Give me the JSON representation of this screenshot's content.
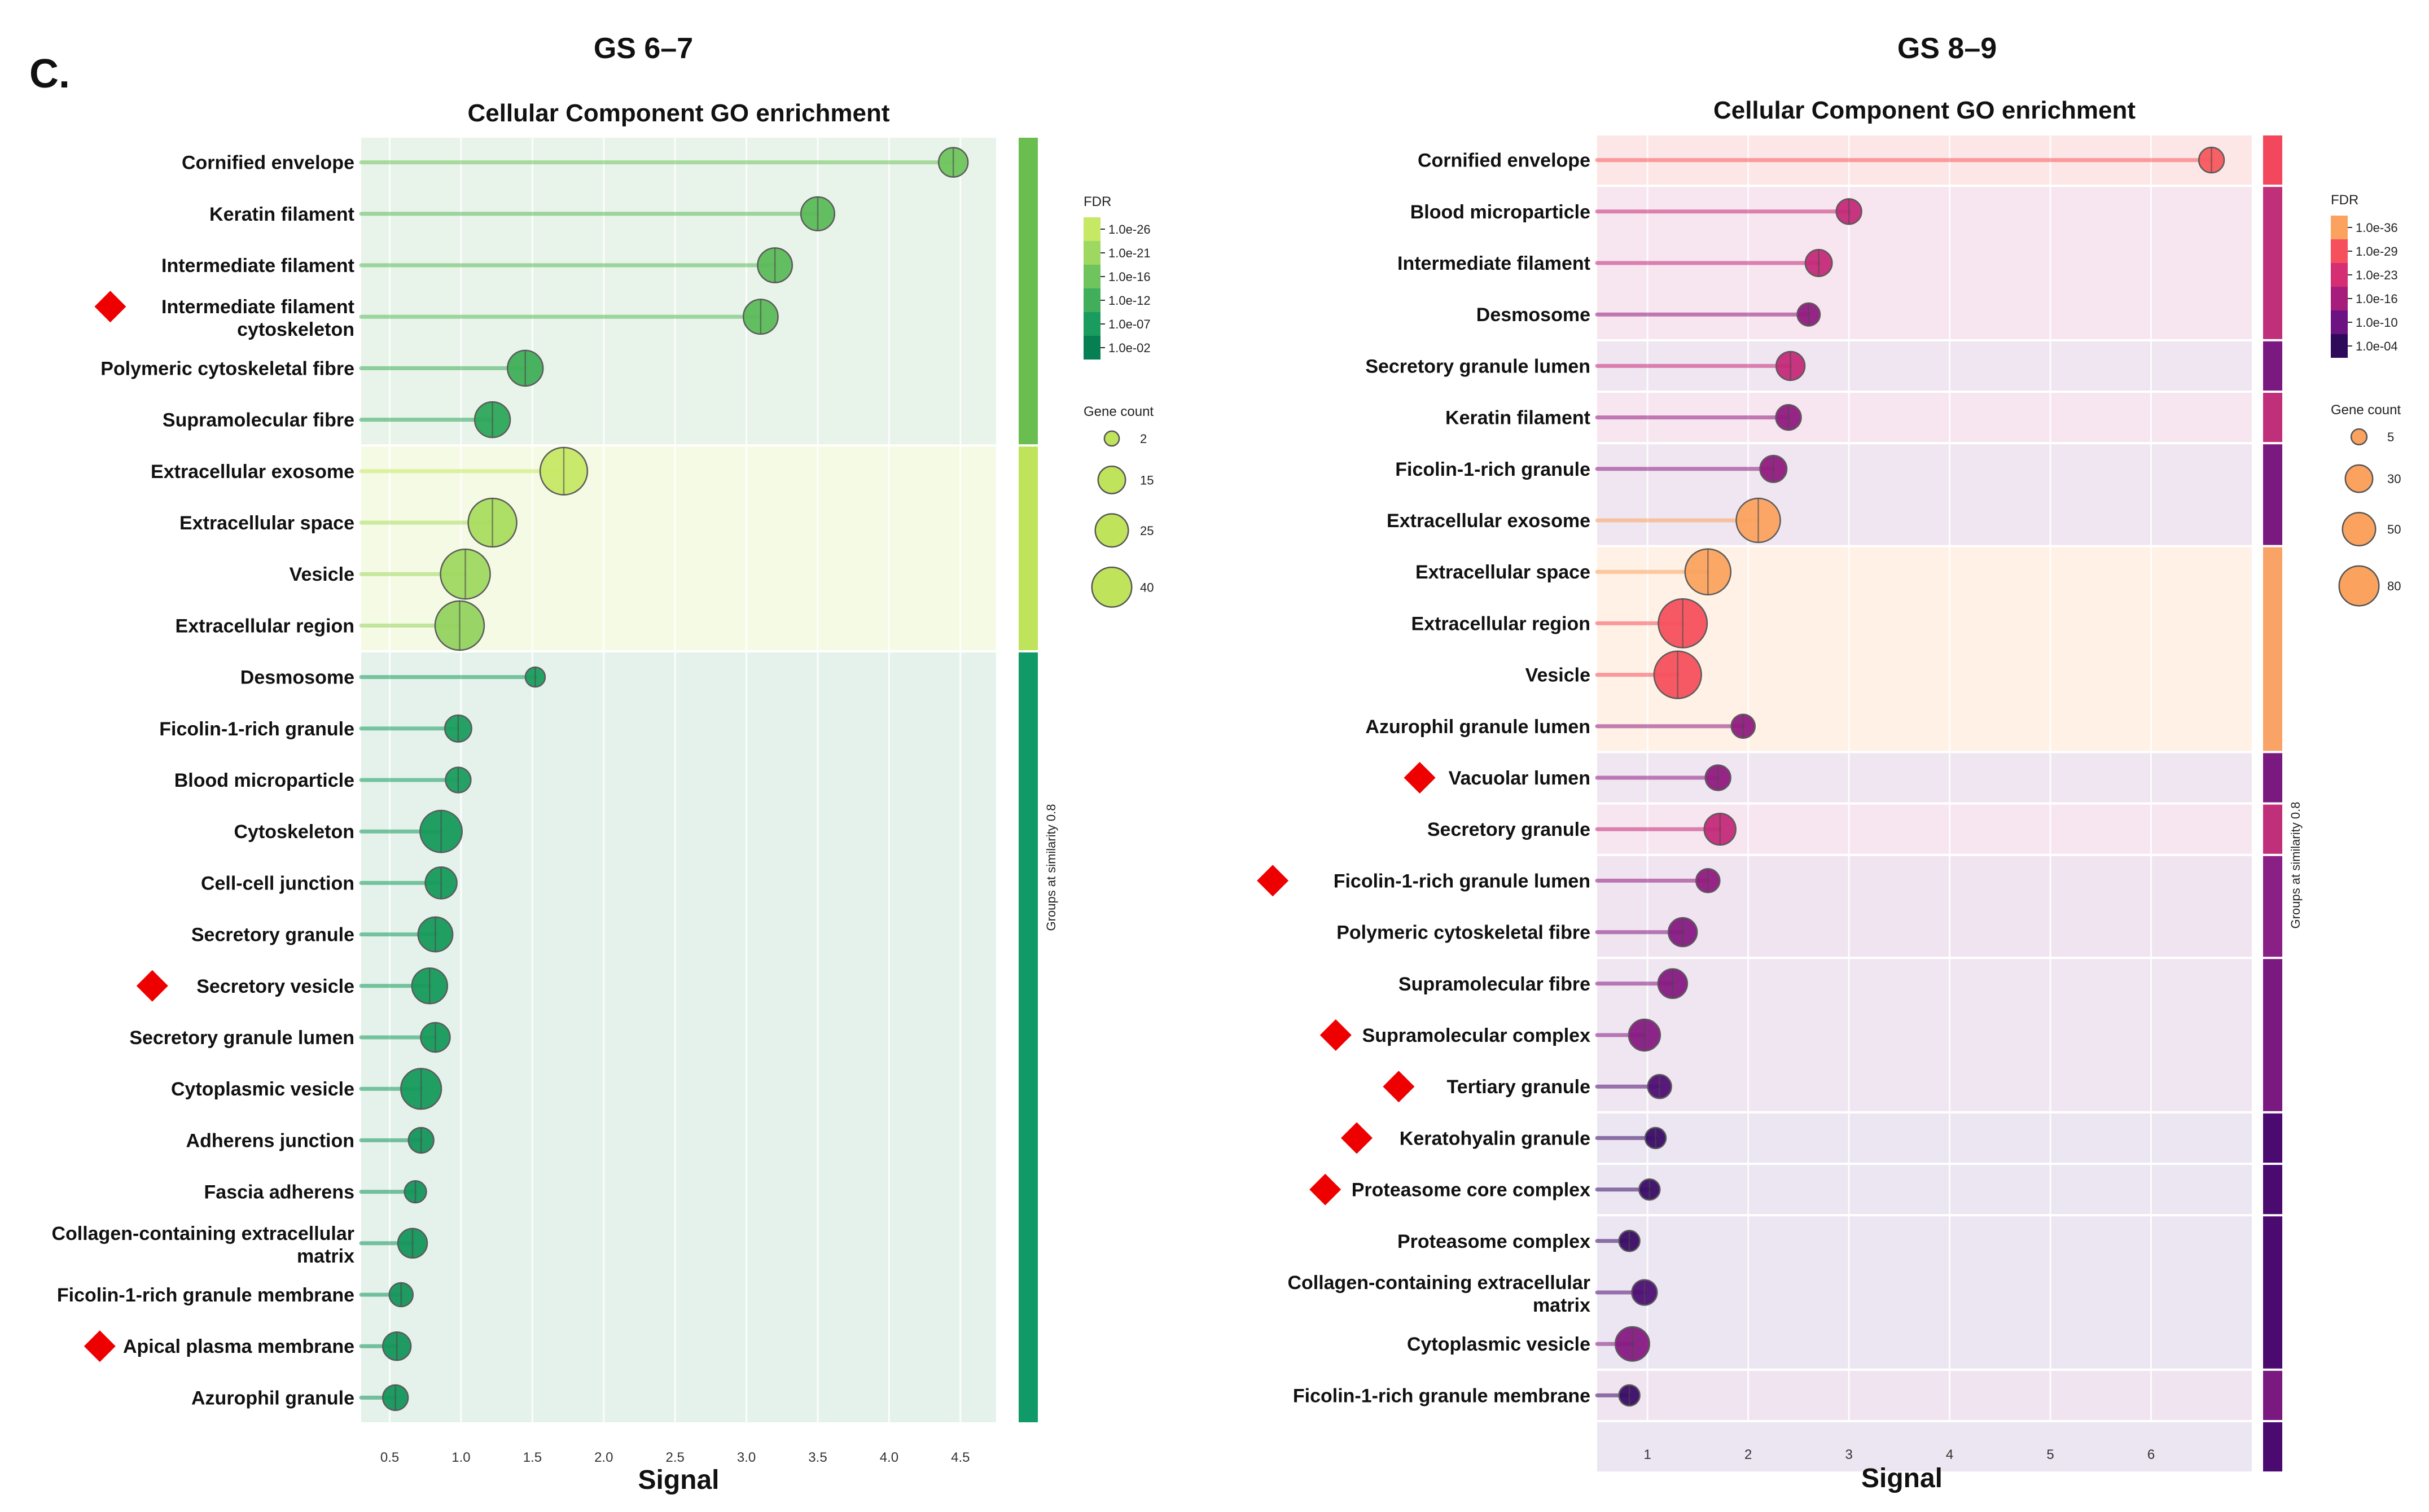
{
  "figure": {
    "panel_label": "C."
  },
  "colors": {
    "marker": "#ee0000",
    "green_bands": [
      "#6abd4f",
      "#bfe35b",
      "#109a68"
    ],
    "pink_bands": [
      "#f2475c",
      "#f9a366",
      "#7a197f"
    ]
  },
  "chart_data": [
    {
      "type": "lollipop",
      "title": "GS 6–7",
      "subtitle": "Cellular Component GO enrichment",
      "xlabel": "Signal",
      "xlim": [
        0.3,
        4.75
      ],
      "xticks": [
        "0.5",
        "1.0",
        "1.5",
        "2.0",
        "2.5",
        "3.0",
        "3.5",
        "4.0",
        "4.5"
      ],
      "xtick_values": [
        0.5,
        1.0,
        1.5,
        2.0,
        2.5,
        3.0,
        3.5,
        4.0,
        4.5
      ],
      "side_label": "Groups at similarity 0.8",
      "legend": {
        "fdr_title": "FDR",
        "fdr_labels": [
          "1.0e-26",
          "1.0e-21",
          "1.0e-16",
          "1.0e-12",
          "1.0e-07",
          "1.0e-02"
        ],
        "fdr_colors": [
          "#c6e865",
          "#9fd860",
          "#6fc45d",
          "#40ae5b",
          "#1a9c5e",
          "#067f53"
        ],
        "size_title": "Gene count",
        "size_labels": [
          "2",
          "15",
          "25",
          "40"
        ],
        "size_values": [
          2,
          15,
          25,
          40
        ],
        "size_color": "#bfe35b"
      },
      "groups": [
        {
          "name": "group-1",
          "color": "#6abd4f",
          "bg": "#e8f3ea",
          "count": 6
        },
        {
          "name": "group-2",
          "color": "#bfe35b",
          "bg": "#f5fae4",
          "count": 4
        },
        {
          "name": "group-3",
          "color": "#109a68",
          "bg": "#e5f2ec",
          "count": 15
        }
      ],
      "terms": [
        {
          "name": "Cornified envelope",
          "signal": 4.45,
          "fdr": "1.0e-16",
          "size": 8,
          "color": "#6fc45d",
          "marked": false,
          "group": 0
        },
        {
          "name": "Keratin filament",
          "signal": 3.5,
          "fdr": "1.0e-16",
          "size": 12,
          "color": "#5cba5a",
          "marked": false,
          "group": 0
        },
        {
          "name": "Intermediate filament",
          "signal": 3.2,
          "fdr": "1.0e-16",
          "size": 13,
          "color": "#5cba5a",
          "marked": false,
          "group": 0
        },
        {
          "name": "Intermediate filament",
          "name2": "cytoskeleton",
          "signal": 3.1,
          "fdr": "1.0e-16",
          "size": 13,
          "color": "#5cba5a",
          "marked": true,
          "group": 0
        },
        {
          "name": "Polymeric cytoskeletal fibre",
          "signal": 1.45,
          "fdr": "1.0e-12",
          "size": 14,
          "color": "#3fae58",
          "marked": false,
          "group": 0
        },
        {
          "name": "Supramolecular fibre",
          "signal": 1.22,
          "fdr": "1.0e-12",
          "size": 14,
          "color": "#2da65a",
          "marked": false,
          "group": 0
        },
        {
          "name": "Extracellular exosome",
          "signal": 1.72,
          "fdr": "1.0e-26",
          "size": 30,
          "color": "#c6e865",
          "marked": false,
          "group": 1
        },
        {
          "name": "Extracellular space",
          "signal": 1.22,
          "fdr": "1.0e-26",
          "size": 32,
          "color": "#a9dc5f",
          "marked": false,
          "group": 1
        },
        {
          "name": "Vesicle",
          "signal": 1.03,
          "fdr": "1.0e-21",
          "size": 34,
          "color": "#9fd860",
          "marked": false,
          "group": 1
        },
        {
          "name": "Extracellular region",
          "signal": 0.99,
          "fdr": "1.0e-21",
          "size": 33,
          "color": "#93d35f",
          "marked": false,
          "group": 1
        },
        {
          "name": "Desmosome",
          "signal": 1.52,
          "fdr": "1.0e-02",
          "size": 2,
          "color": "#1a9c5e",
          "marked": false,
          "group": 2
        },
        {
          "name": "Ficolin-1-rich granule",
          "signal": 0.98,
          "fdr": "1.0e-07",
          "size": 6,
          "color": "#1a9c5e",
          "marked": false,
          "group": 2
        },
        {
          "name": "Blood microparticle",
          "signal": 0.98,
          "fdr": "1.0e-07",
          "size": 5,
          "color": "#1a9c5e",
          "marked": false,
          "group": 2
        },
        {
          "name": "Cytoskeleton",
          "signal": 0.86,
          "fdr": "1.0e-07",
          "size": 22,
          "color": "#169a5c",
          "marked": false,
          "group": 2
        },
        {
          "name": "Cell-cell junction",
          "signal": 0.86,
          "fdr": "1.0e-07",
          "size": 10,
          "color": "#169a5c",
          "marked": false,
          "group": 2
        },
        {
          "name": "Secretory granule",
          "signal": 0.82,
          "fdr": "1.0e-07",
          "size": 13,
          "color": "#169a5c",
          "marked": false,
          "group": 2
        },
        {
          "name": "Secretory vesicle",
          "signal": 0.78,
          "fdr": "1.0e-07",
          "size": 14,
          "color": "#169a5c",
          "marked": true,
          "group": 2
        },
        {
          "name": "Secretory granule lumen",
          "signal": 0.82,
          "fdr": "1.0e-07",
          "size": 8,
          "color": "#169a5c",
          "marked": false,
          "group": 2
        },
        {
          "name": "Cytoplasmic vesicle",
          "signal": 0.72,
          "fdr": "1.0e-07",
          "size": 20,
          "color": "#169a5c",
          "marked": false,
          "group": 2
        },
        {
          "name": "Adherens junction",
          "signal": 0.72,
          "fdr": "1.0e-02",
          "size": 5,
          "color": "#14955b",
          "marked": false,
          "group": 2
        },
        {
          "name": "Fascia adherens",
          "signal": 0.68,
          "fdr": "1.0e-02",
          "size": 3,
          "color": "#14955b",
          "marked": false,
          "group": 2
        },
        {
          "name": "Collagen-containing extracellular",
          "name2": "matrix",
          "signal": 0.66,
          "fdr": "1.0e-02",
          "size": 8,
          "color": "#14955b",
          "marked": false,
          "group": 2
        },
        {
          "name": "Ficolin-1-rich granule membrane",
          "signal": 0.58,
          "fdr": "1.0e-02",
          "size": 4,
          "color": "#14955b",
          "marked": false,
          "group": 2
        },
        {
          "name": "Apical plasma membrane",
          "signal": 0.55,
          "fdr": "1.0e-02",
          "size": 7,
          "color": "#14955b",
          "marked": true,
          "group": 2
        },
        {
          "name": "Azurophil granule",
          "signal": 0.54,
          "fdr": "1.0e-02",
          "size": 5,
          "color": "#14955b",
          "marked": false,
          "group": 2
        }
      ]
    },
    {
      "type": "lollipop",
      "title": "GS 8–9",
      "subtitle": "Cellular Component GO enrichment",
      "xlabel": "Signal",
      "xlim": [
        0.5,
        7.0
      ],
      "xticks": [
        "1",
        "2",
        "3",
        "4",
        "5",
        "6"
      ],
      "xtick_values": [
        1,
        2,
        3,
        4,
        5,
        6
      ],
      "side_label": "Groups at similarity 0.8",
      "legend": {
        "fdr_title": "FDR",
        "fdr_labels": [
          "1.0e-36",
          "1.0e-29",
          "1.0e-23",
          "1.0e-16",
          "1.0e-10",
          "1.0e-04"
        ],
        "fdr_colors": [
          "#fba25f",
          "#f6505c",
          "#d62e72",
          "#a61d7c",
          "#6c1282",
          "#2e0a5a"
        ],
        "size_title": "Gene count",
        "size_labels": [
          "5",
          "30",
          "50",
          "80"
        ],
        "size_values": [
          5,
          30,
          50,
          80
        ],
        "size_color": "#fba25f"
      },
      "groups": [
        {
          "name": "group-1",
          "color": "#f2475c",
          "bg": "#fde6e6",
          "count": 1
        },
        {
          "name": "group-2",
          "color": "#c0307a",
          "bg": "#f7e6ef",
          "count": 3
        },
        {
          "name": "group-3",
          "color": "#7a197f",
          "bg": "#efe6f1",
          "count": 1
        },
        {
          "name": "group-4",
          "color": "#c0307a",
          "bg": "#f7e6ef",
          "count": 1
        },
        {
          "name": "group-5",
          "color": "#7a197f",
          "bg": "#efe6f1",
          "count": 2
        },
        {
          "name": "group-6",
          "color": "#f9a366",
          "bg": "#fff1e6",
          "count": 4
        },
        {
          "name": "group-7",
          "color": "#7a197f",
          "bg": "#efe6f1",
          "count": 1
        },
        {
          "name": "group-8",
          "color": "#c0307a",
          "bg": "#f7e6ef",
          "count": 1
        },
        {
          "name": "group-9",
          "color": "#8a1f86",
          "bg": "#f0e4f0",
          "count": 2
        },
        {
          "name": "group-10",
          "color": "#7a197f",
          "bg": "#efe6f1",
          "count": 3
        },
        {
          "name": "group-11",
          "color": "#4a0a70",
          "bg": "#ebe6f1",
          "count": 1
        },
        {
          "name": "group-12",
          "color": "#4a0a70",
          "bg": "#ebe6f1",
          "count": 1
        },
        {
          "name": "group-13",
          "color": "#4a0a70",
          "bg": "#ebe6f1",
          "count": 3
        },
        {
          "name": "group-14",
          "color": "#7a197f",
          "bg": "#f0e4f0",
          "count": 1
        },
        {
          "name": "group-15",
          "color": "#4a0a70",
          "bg": "#ebe6f1",
          "count": 1
        }
      ],
      "terms": [
        {
          "name": "Cornified envelope",
          "signal": 6.6,
          "fdr": "1.0e-29",
          "size": 10,
          "color": "#f7595e",
          "marked": false
        },
        {
          "name": "Blood microparticle",
          "signal": 3.0,
          "fdr": "1.0e-23",
          "size": 10,
          "color": "#c42a78",
          "marked": false
        },
        {
          "name": "Intermediate filament",
          "signal": 2.7,
          "fdr": "1.0e-23",
          "size": 12,
          "color": "#c42a78",
          "marked": false
        },
        {
          "name": "Desmosome",
          "signal": 2.6,
          "fdr": "1.0e-16",
          "size": 7,
          "color": "#901b80",
          "marked": false
        },
        {
          "name": "Secretory granule lumen",
          "signal": 2.42,
          "fdr": "1.0e-23",
          "size": 15,
          "color": "#c42a78",
          "marked": false
        },
        {
          "name": "Keratin filament",
          "signal": 2.4,
          "fdr": "1.0e-16",
          "size": 10,
          "color": "#901b80",
          "marked": false
        },
        {
          "name": "Ficolin-1-rich granule",
          "signal": 2.25,
          "fdr": "1.0e-16",
          "size": 12,
          "color": "#901b80",
          "marked": false
        },
        {
          "name": "Extracellular exosome",
          "signal": 2.1,
          "fdr": "1.0e-36",
          "size": 50,
          "color": "#fba25f",
          "marked": false
        },
        {
          "name": "Extracellular space",
          "signal": 1.6,
          "fdr": "1.0e-36",
          "size": 55,
          "color": "#fba25f",
          "marked": false
        },
        {
          "name": "Extracellular region",
          "signal": 1.35,
          "fdr": "1.0e-29",
          "size": 65,
          "color": "#f6505c",
          "marked": false
        },
        {
          "name": "Vesicle",
          "signal": 1.3,
          "fdr": "1.0e-29",
          "size": 60,
          "color": "#f6505c",
          "marked": false
        },
        {
          "name": "Azurophil granule lumen",
          "signal": 1.95,
          "fdr": "1.0e-16",
          "size": 8,
          "color": "#901b80",
          "marked": false
        },
        {
          "name": "Vacuolar lumen",
          "signal": 1.7,
          "fdr": "1.0e-16",
          "size": 10,
          "color": "#901b80",
          "marked": true
        },
        {
          "name": "Secretory granule",
          "signal": 1.72,
          "fdr": "1.0e-23",
          "size": 20,
          "color": "#c42a78",
          "marked": false
        },
        {
          "name": "Ficolin-1-rich granule lumen",
          "signal": 1.6,
          "fdr": "1.0e-16",
          "size": 8,
          "color": "#901b80",
          "marked": true
        },
        {
          "name": "Polymeric cytoskeletal fibre",
          "signal": 1.35,
          "fdr": "1.0e-16",
          "size": 15,
          "color": "#861a82",
          "marked": false
        },
        {
          "name": "Supramolecular fibre",
          "signal": 1.25,
          "fdr": "1.0e-16",
          "size": 16,
          "color": "#861a82",
          "marked": false
        },
        {
          "name": "Supramolecular complex",
          "signal": 0.97,
          "fdr": "1.0e-16",
          "size": 20,
          "color": "#861a82",
          "marked": true
        },
        {
          "name": "Tertiary granule",
          "signal": 1.12,
          "fdr": "1.0e-10",
          "size": 8,
          "color": "#4e0f74",
          "marked": true
        },
        {
          "name": "Keratohyalin granule",
          "signal": 1.08,
          "fdr": "1.0e-04",
          "size": 5,
          "color": "#3a0c66",
          "marked": true
        },
        {
          "name": "Proteasome core complex",
          "signal": 1.02,
          "fdr": "1.0e-04",
          "size": 5,
          "color": "#3a0c66",
          "marked": true
        },
        {
          "name": "Proteasome complex",
          "signal": 0.82,
          "fdr": "1.0e-04",
          "size": 5,
          "color": "#3a0c66",
          "marked": false
        },
        {
          "name": "Collagen-containing extracellular",
          "name2": "matrix",
          "signal": 0.97,
          "fdr": "1.0e-10",
          "size": 10,
          "color": "#4e0f74",
          "marked": false
        },
        {
          "name": "Cytoplasmic vesicle",
          "signal": 0.85,
          "fdr": "1.0e-16",
          "size": 25,
          "color": "#861a82",
          "marked": false
        },
        {
          "name": "Ficolin-1-rich granule membrane",
          "signal": 0.82,
          "fdr": "1.0e-04",
          "size": 5,
          "color": "#3a0c66",
          "marked": false
        }
      ]
    }
  ]
}
